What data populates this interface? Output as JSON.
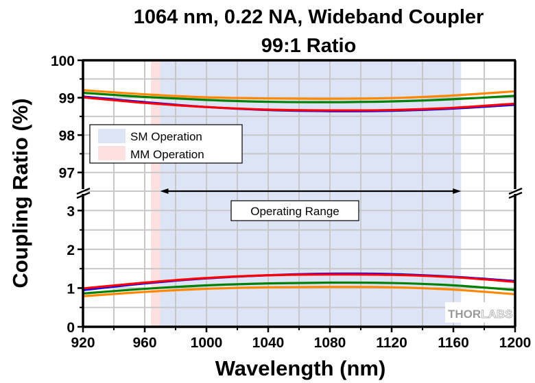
{
  "chart_data": {
    "type": "line",
    "title": "1064 nm, 0.22 NA, Wideband Coupler",
    "subtitle": "99:1 Ratio",
    "xlabel": "Wavelength (nm)",
    "ylabel": "Coupling Ratio (%)",
    "xlim": [
      920,
      1200
    ],
    "x_ticks": [
      920,
      960,
      1000,
      1040,
      1080,
      1120,
      1160,
      1200
    ],
    "y_axis_broken": true,
    "y_upper_range": [
      96.5,
      100
    ],
    "y_lower_range": [
      0,
      3.5
    ],
    "y_upper_ticks": [
      97,
      98,
      99,
      100
    ],
    "y_lower_ticks": [
      0,
      1,
      2,
      3
    ],
    "grid": true,
    "legend": {
      "placement": "upper-left",
      "entries": [
        {
          "label": "SM Operation",
          "color": "#dce4f5"
        },
        {
          "label": "MM Operation",
          "color": "#fde0e0"
        }
      ]
    },
    "bands": [
      {
        "name": "MM Operation",
        "x_range": [
          964,
          970
        ],
        "color": "#fde0e0"
      },
      {
        "name": "SM Operation",
        "x_range": [
          970,
          1165
        ],
        "color": "#dce4f5"
      }
    ],
    "annotation": {
      "text": "Operating Range",
      "arrow_x_range": [
        970,
        1165
      ]
    },
    "x": [
      920,
      960,
      1000,
      1040,
      1080,
      1120,
      1160,
      1200
    ],
    "series": [
      {
        "name": "upper-orange",
        "panel": "upper",
        "color": "#ff8800",
        "values": [
          99.2,
          99.09,
          99.01,
          98.98,
          98.97,
          98.99,
          99.06,
          99.17
        ]
      },
      {
        "name": "upper-green",
        "panel": "upper",
        "color": "#008000",
        "values": [
          99.13,
          99.02,
          98.94,
          98.89,
          98.88,
          98.9,
          98.96,
          99.05
        ]
      },
      {
        "name": "upper-blue",
        "panel": "upper",
        "color": "#0000ff",
        "values": [
          99.03,
          98.88,
          98.75,
          98.67,
          98.64,
          98.65,
          98.71,
          98.81
        ]
      },
      {
        "name": "upper-red",
        "panel": "upper",
        "color": "#ff0000",
        "values": [
          99.01,
          98.86,
          98.75,
          98.68,
          98.66,
          98.67,
          98.73,
          98.84
        ]
      },
      {
        "name": "lower-blue",
        "panel": "lower",
        "color": "#0000ff",
        "values": [
          0.95,
          1.12,
          1.25,
          1.33,
          1.37,
          1.36,
          1.29,
          1.18
        ]
      },
      {
        "name": "lower-red",
        "panel": "lower",
        "color": "#ff0000",
        "values": [
          0.99,
          1.14,
          1.26,
          1.33,
          1.35,
          1.34,
          1.28,
          1.16
        ]
      },
      {
        "name": "lower-green",
        "panel": "lower",
        "color": "#008000",
        "values": [
          0.86,
          0.98,
          1.07,
          1.12,
          1.14,
          1.13,
          1.07,
          0.95
        ]
      },
      {
        "name": "lower-orange",
        "panel": "lower",
        "color": "#ff8800",
        "values": [
          0.79,
          0.9,
          0.98,
          1.02,
          1.03,
          1.02,
          0.96,
          0.84
        ]
      }
    ],
    "watermark": {
      "text_dark": "THOR",
      "text_light": "LABS"
    }
  }
}
